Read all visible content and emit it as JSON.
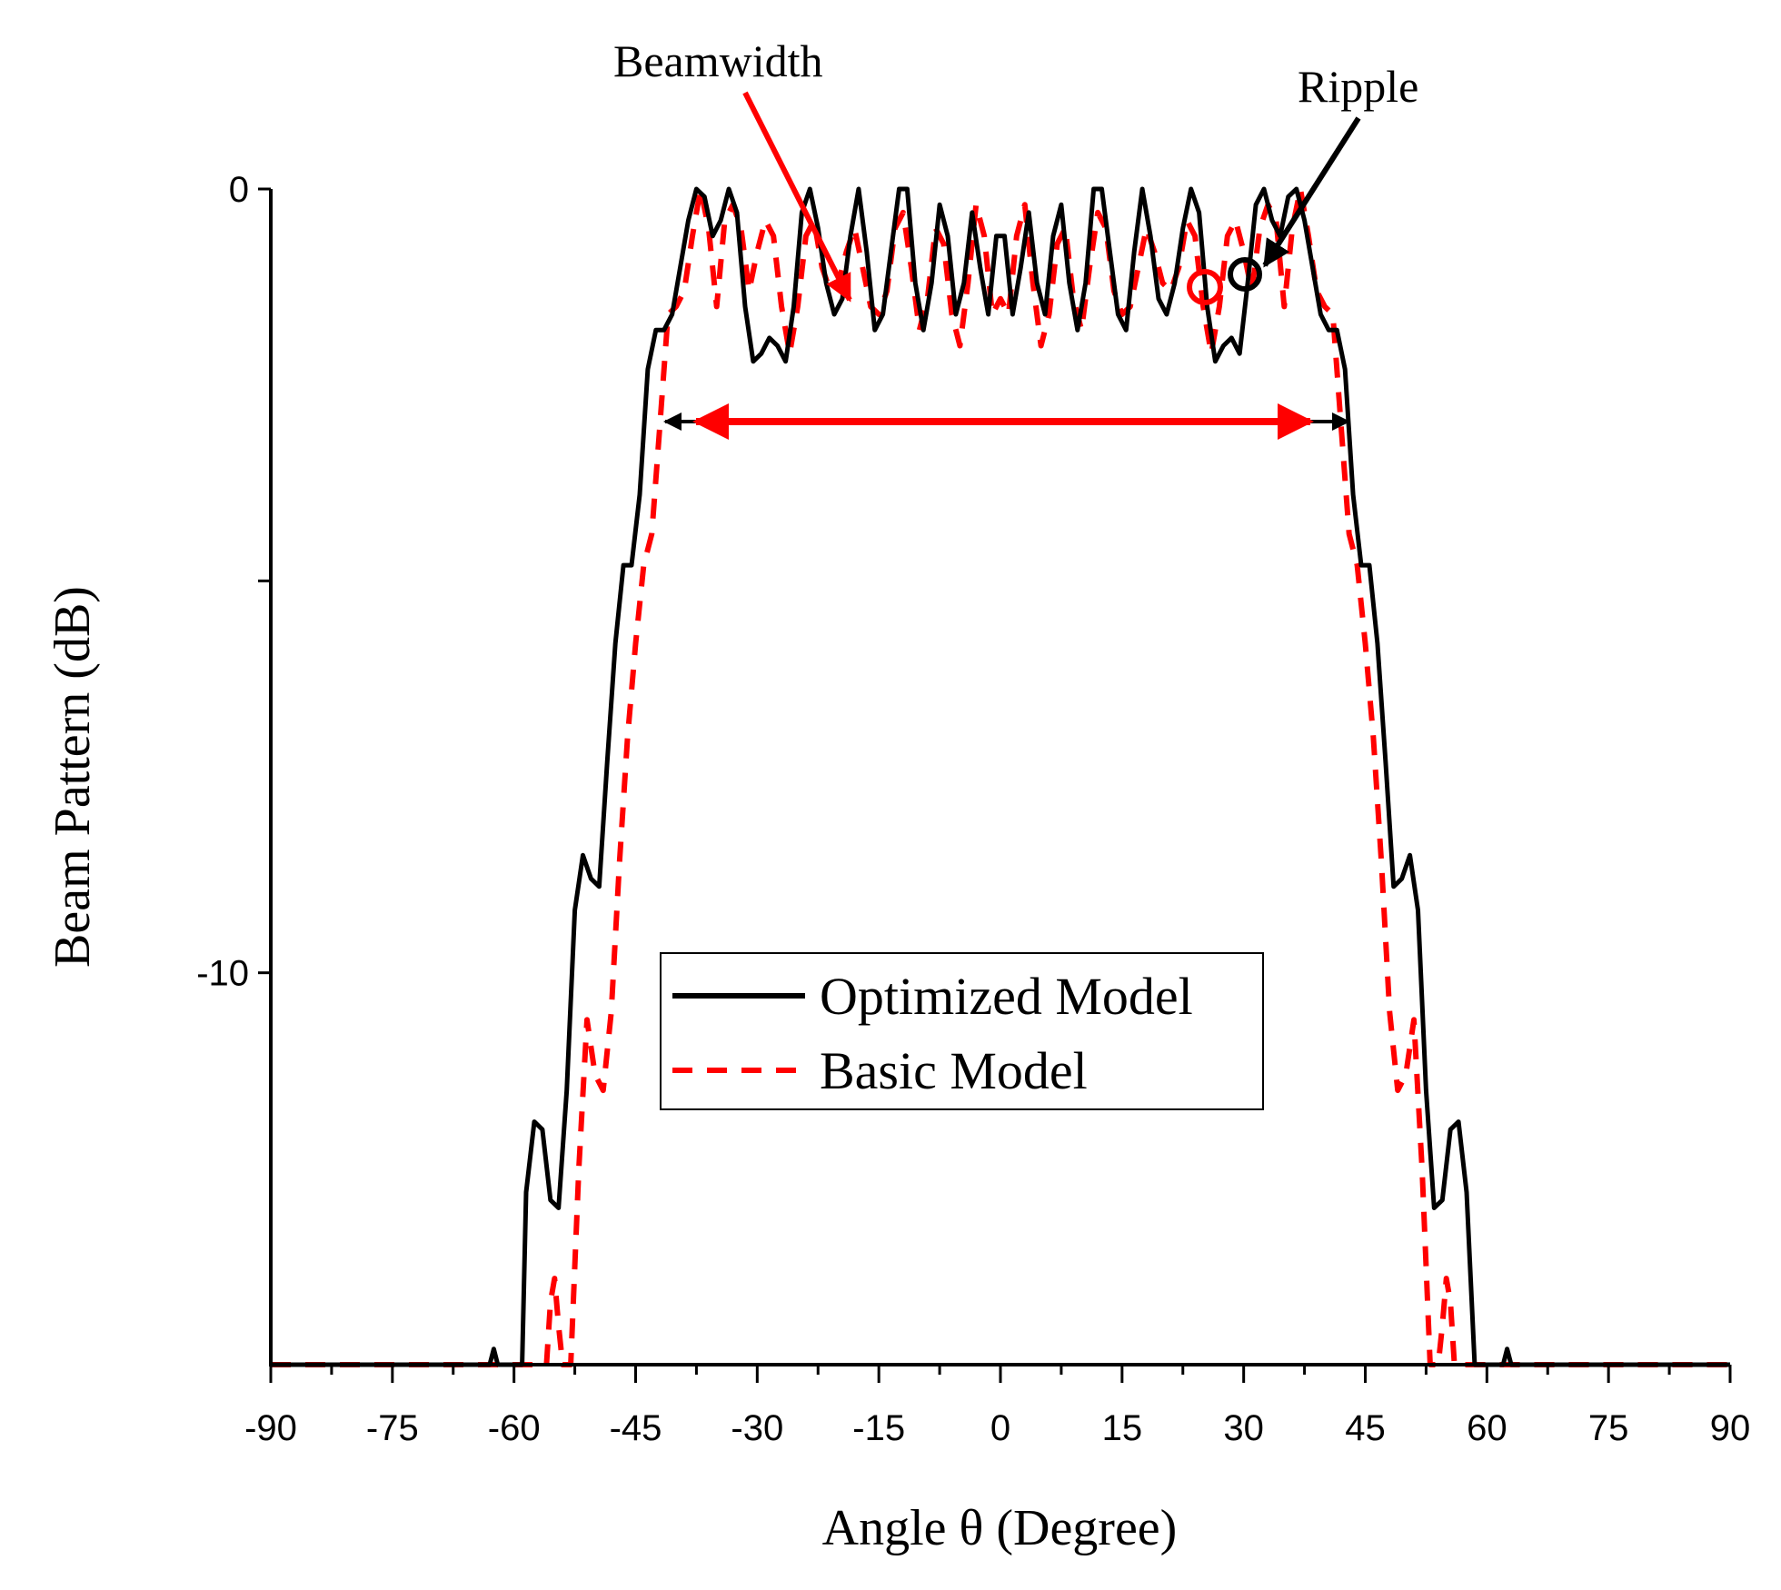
{
  "chart_data": {
    "type": "line",
    "xlabel": "Angle θ (Degree)",
    "ylabel": "Beam Pattern (dB)",
    "xlim": [
      -90,
      90
    ],
    "ylim": [
      -15,
      0
    ],
    "x_ticks": [
      -90,
      -75,
      -60,
      -45,
      -30,
      -15,
      0,
      15,
      30,
      45,
      60,
      75,
      90
    ],
    "y_ticks": [
      {
        "value": 0,
        "label": "0"
      },
      {
        "value": -5,
        "label": ""
      },
      {
        "value": -10,
        "label": "-10"
      }
    ],
    "grid": false,
    "legend": {
      "placement": "center-bottom",
      "boxed": true
    },
    "series": [
      {
        "name": "Optimized Model",
        "color": "#000000",
        "style": "solid",
        "points": [
          [
            -90,
            -15
          ],
          [
            -63,
            -15
          ],
          [
            -62.5,
            -14.8
          ],
          [
            -62,
            -15
          ],
          [
            -59,
            -15
          ],
          [
            -58.5,
            -12.8
          ],
          [
            -57.5,
            -11.9
          ],
          [
            -56.5,
            -12
          ],
          [
            -55.5,
            -12.9
          ],
          [
            -54.5,
            -13
          ],
          [
            -53.5,
            -11.5
          ],
          [
            -52.5,
            -9.2
          ],
          [
            -51.5,
            -8.5
          ],
          [
            -50.5,
            -8.8
          ],
          [
            -49.5,
            -8.9
          ],
          [
            -48.5,
            -7.3
          ],
          [
            -47.5,
            -5.8
          ],
          [
            -46.5,
            -4.8
          ],
          [
            -45.5,
            -4.8
          ],
          [
            -44.5,
            -3.9
          ],
          [
            -43.5,
            -2.3
          ],
          [
            -42.5,
            -1.8
          ],
          [
            -41.5,
            -1.8
          ],
          [
            -40.5,
            -1.6
          ],
          [
            -39.5,
            -1
          ],
          [
            -38.5,
            -0.4
          ],
          [
            -37.5,
            0
          ],
          [
            -36.5,
            -0.1
          ],
          [
            -35.5,
            -0.6
          ],
          [
            -34.5,
            -0.4
          ],
          [
            -33.5,
            0
          ],
          [
            -32.5,
            -0.3
          ],
          [
            -31.5,
            -1.5
          ],
          [
            -30.5,
            -2.2
          ],
          [
            -29.5,
            -2.1
          ],
          [
            -28.5,
            -1.9
          ],
          [
            -27.5,
            -2
          ],
          [
            -26.5,
            -2.2
          ],
          [
            -25.5,
            -1.5
          ],
          [
            -24.5,
            -0.3
          ],
          [
            -23.5,
            0
          ],
          [
            -22.5,
            -0.5
          ],
          [
            -21.5,
            -1.2
          ],
          [
            -20.5,
            -1.6
          ],
          [
            -19.5,
            -1.4
          ],
          [
            -18.5,
            -0.6
          ],
          [
            -17.5,
            0
          ],
          [
            -16.5,
            -0.8
          ],
          [
            -15.5,
            -1.8
          ],
          [
            -14.5,
            -1.6
          ],
          [
            -13.5,
            -0.8
          ],
          [
            -12.5,
            0
          ],
          [
            -11.5,
            0
          ],
          [
            -10.5,
            -1.2
          ],
          [
            -9.5,
            -1.8
          ],
          [
            -8.5,
            -1.2
          ],
          [
            -7.5,
            -0.2
          ],
          [
            -6.5,
            -0.6
          ],
          [
            -5.5,
            -1.6
          ],
          [
            -4.5,
            -1.2
          ],
          [
            -3.5,
            -0.3
          ],
          [
            -2.5,
            -1
          ],
          [
            -1.5,
            -1.6
          ],
          [
            -0.5,
            -0.6
          ],
          [
            0.5,
            -0.6
          ],
          [
            1.5,
            -1.6
          ],
          [
            2.5,
            -1
          ],
          [
            3.5,
            -0.3
          ],
          [
            4.5,
            -1.2
          ],
          [
            5.5,
            -1.6
          ],
          [
            6.5,
            -0.6
          ],
          [
            7.5,
            -0.2
          ],
          [
            8.5,
            -1.2
          ],
          [
            9.5,
            -1.8
          ],
          [
            10.5,
            -1.2
          ],
          [
            11.5,
            0
          ],
          [
            12.5,
            0
          ],
          [
            13.5,
            -0.8
          ],
          [
            14.5,
            -1.6
          ],
          [
            15.5,
            -1.8
          ],
          [
            16.5,
            -0.8
          ],
          [
            17.5,
            0
          ],
          [
            18.5,
            -0.6
          ],
          [
            19.5,
            -1.4
          ],
          [
            20.5,
            -1.6
          ],
          [
            21.5,
            -1.2
          ],
          [
            22.5,
            -0.5
          ],
          [
            23.5,
            0
          ],
          [
            24.5,
            -0.3
          ],
          [
            25.5,
            -1.5
          ],
          [
            26.5,
            -2.2
          ],
          [
            27.5,
            -2
          ],
          [
            28.5,
            -1.9
          ],
          [
            29.5,
            -2.1
          ],
          [
            30.5,
            -1.2
          ],
          [
            31.5,
            -0.2
          ],
          [
            32.5,
            0
          ],
          [
            33.5,
            -0.4
          ],
          [
            34.5,
            -0.6
          ],
          [
            35.5,
            -0.1
          ],
          [
            36.5,
            0
          ],
          [
            37.5,
            -0.4
          ],
          [
            38.5,
            -1
          ],
          [
            39.5,
            -1.6
          ],
          [
            40.5,
            -1.8
          ],
          [
            41.5,
            -1.8
          ],
          [
            42.5,
            -2.3
          ],
          [
            43.5,
            -3.9
          ],
          [
            44.5,
            -4.8
          ],
          [
            45.5,
            -4.8
          ],
          [
            46.5,
            -5.8
          ],
          [
            47.5,
            -7.3
          ],
          [
            48.5,
            -8.9
          ],
          [
            49.5,
            -8.8
          ],
          [
            50.5,
            -8.5
          ],
          [
            51.5,
            -9.2
          ],
          [
            52.5,
            -11.5
          ],
          [
            53.5,
            -13
          ],
          [
            54.5,
            -12.9
          ],
          [
            55.5,
            -12
          ],
          [
            56.5,
            -11.9
          ],
          [
            57.5,
            -12.8
          ],
          [
            58.5,
            -15
          ],
          [
            62,
            -15
          ],
          [
            62.5,
            -14.8
          ],
          [
            63,
            -15
          ],
          [
            90,
            -15
          ]
        ]
      },
      {
        "name": "Basic Model",
        "color": "#ff0000",
        "style": "dashed",
        "points": [
          [
            -90,
            -15
          ],
          [
            -56,
            -15
          ],
          [
            -55.5,
            -14.2
          ],
          [
            -55,
            -13.9
          ],
          [
            -54.5,
            -14.5
          ],
          [
            -54,
            -15
          ],
          [
            -53,
            -15
          ],
          [
            -52,
            -12.5
          ],
          [
            -51,
            -10.6
          ],
          [
            -50,
            -11.3
          ],
          [
            -49,
            -11.5
          ],
          [
            -48,
            -10.5
          ],
          [
            -47,
            -8.6
          ],
          [
            -46,
            -7
          ],
          [
            -45,
            -5.8
          ],
          [
            -44,
            -4.8
          ],
          [
            -43,
            -4.4
          ],
          [
            -42,
            -3
          ],
          [
            -41,
            -1.6
          ],
          [
            -40,
            -1.5
          ],
          [
            -39,
            -1.3
          ],
          [
            -38,
            -0.6
          ],
          [
            -37,
            0
          ],
          [
            -36,
            -0.5
          ],
          [
            -35,
            -1.5
          ],
          [
            -34,
            -0.4
          ],
          [
            -33,
            -0.2
          ],
          [
            -32,
            -0.5
          ],
          [
            -31,
            -1.3
          ],
          [
            -30,
            -0.8
          ],
          [
            -29,
            -0.4
          ],
          [
            -28,
            -0.6
          ],
          [
            -27,
            -1.5
          ],
          [
            -26,
            -2.1
          ],
          [
            -25,
            -1.5
          ],
          [
            -24,
            -0.6
          ],
          [
            -23,
            -0.4
          ],
          [
            -22,
            -1
          ],
          [
            -21,
            -1.3
          ],
          [
            -20,
            -1.2
          ],
          [
            -19,
            -0.8
          ],
          [
            -18,
            -0.5
          ],
          [
            -17,
            -1
          ],
          [
            -16,
            -1.5
          ],
          [
            -15,
            -1.6
          ],
          [
            -14,
            -1.3
          ],
          [
            -13,
            -0.5
          ],
          [
            -12,
            -0.3
          ],
          [
            -11,
            -1
          ],
          [
            -10,
            -1.8
          ],
          [
            -9,
            -1.4
          ],
          [
            -8,
            -0.5
          ],
          [
            -7,
            -0.7
          ],
          [
            -6,
            -1.6
          ],
          [
            -5,
            -2
          ],
          [
            -4,
            -1.2
          ],
          [
            -3,
            -0.2
          ],
          [
            -2,
            -0.6
          ],
          [
            -1,
            -1.6
          ],
          [
            0,
            -1.4
          ],
          [
            1,
            -1.6
          ],
          [
            2,
            -0.6
          ],
          [
            3,
            -0.2
          ],
          [
            4,
            -1.2
          ],
          [
            5,
            -2
          ],
          [
            6,
            -1.6
          ],
          [
            7,
            -0.7
          ],
          [
            8,
            -0.5
          ],
          [
            9,
            -1.4
          ],
          [
            10,
            -1.8
          ],
          [
            11,
            -1
          ],
          [
            12,
            -0.3
          ],
          [
            13,
            -0.5
          ],
          [
            14,
            -1.3
          ],
          [
            15,
            -1.6
          ],
          [
            16,
            -1.5
          ],
          [
            17,
            -1
          ],
          [
            18,
            -0.5
          ],
          [
            19,
            -0.8
          ],
          [
            20,
            -1.2
          ],
          [
            21,
            -1.3
          ],
          [
            22,
            -1
          ],
          [
            23,
            -0.4
          ],
          [
            24,
            -0.6
          ],
          [
            25,
            -1.5
          ],
          [
            26,
            -2.1
          ],
          [
            27,
            -1.5
          ],
          [
            28,
            -0.6
          ],
          [
            29,
            -0.4
          ],
          [
            30,
            -0.8
          ],
          [
            31,
            -1.3
          ],
          [
            32,
            -0.5
          ],
          [
            33,
            -0.2
          ],
          [
            34,
            -0.4
          ],
          [
            35,
            -1.5
          ],
          [
            36,
            -0.5
          ],
          [
            37,
            0
          ],
          [
            38,
            -0.6
          ],
          [
            39,
            -1.3
          ],
          [
            40,
            -1.5
          ],
          [
            41,
            -1.6
          ],
          [
            42,
            -3
          ],
          [
            43,
            -4.4
          ],
          [
            44,
            -4.8
          ],
          [
            45,
            -5.8
          ],
          [
            46,
            -7
          ],
          [
            47,
            -8.6
          ],
          [
            48,
            -10.5
          ],
          [
            49,
            -11.5
          ],
          [
            50,
            -11.3
          ],
          [
            51,
            -10.6
          ],
          [
            52,
            -12.5
          ],
          [
            53,
            -15
          ],
          [
            54,
            -15
          ],
          [
            54.5,
            -14.5
          ],
          [
            55,
            -13.9
          ],
          [
            55.5,
            -14.2
          ],
          [
            56,
            -15
          ],
          [
            90,
            -15
          ]
        ]
      }
    ],
    "annotations": [
      {
        "text": "Beamwidth",
        "target": {
          "x": -19,
          "y": -1.4
        }
      },
      {
        "text": "Ripple",
        "target": {
          "x": 31,
          "y": -1.1
        }
      }
    ]
  }
}
